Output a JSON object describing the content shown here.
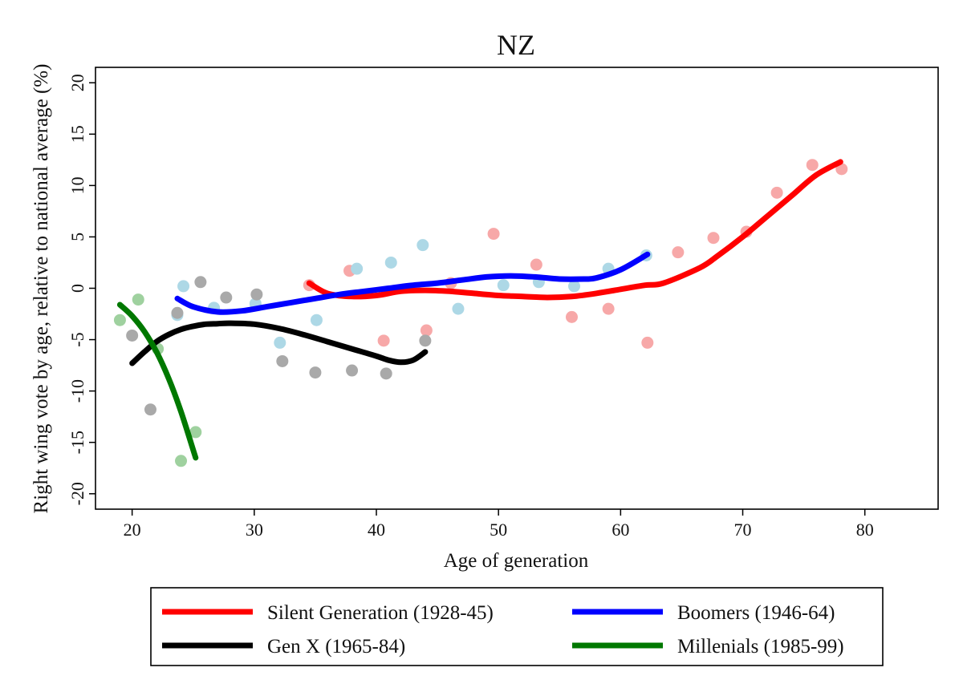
{
  "chart_data": {
    "type": "scatter",
    "title": "NZ",
    "xlabel": "Age of generation",
    "ylabel": "Right wing vote by age, relative to national average (%)",
    "xlim": [
      17,
      86
    ],
    "ylim": [
      -21.5,
      21.5
    ],
    "xticks": [
      20,
      30,
      40,
      50,
      60,
      70,
      80
    ],
    "yticks": [
      -20,
      -15,
      -10,
      -5,
      0,
      5,
      10,
      15,
      20
    ],
    "grid": false,
    "legend_position": "bottom",
    "legend_columns": 2,
    "series": [
      {
        "name": "Silent Generation (1928-45)",
        "color": "#ff0000",
        "point_color": "#f7a8a8",
        "points": [
          [
            34.5,
            0.3
          ],
          [
            37.8,
            1.7
          ],
          [
            40.6,
            -5.1
          ],
          [
            44.1,
            -4.1
          ],
          [
            46.1,
            0.5
          ],
          [
            49.6,
            5.3
          ],
          [
            53.1,
            2.3
          ],
          [
            56.0,
            -2.8
          ],
          [
            59.0,
            -2.0
          ],
          [
            62.2,
            -5.3
          ],
          [
            64.7,
            3.5
          ],
          [
            67.6,
            4.9
          ],
          [
            70.3,
            5.5
          ],
          [
            72.8,
            9.3
          ],
          [
            75.7,
            12.0
          ],
          [
            78.1,
            11.6
          ]
        ],
        "trend": [
          [
            34.5,
            0.5
          ],
          [
            36.0,
            -0.5
          ],
          [
            38.0,
            -0.8
          ],
          [
            40.0,
            -0.7
          ],
          [
            42.0,
            -0.3
          ],
          [
            44.0,
            -0.2
          ],
          [
            46.0,
            -0.3
          ],
          [
            48.0,
            -0.5
          ],
          [
            50.0,
            -0.7
          ],
          [
            52.0,
            -0.8
          ],
          [
            54.0,
            -0.9
          ],
          [
            56.0,
            -0.8
          ],
          [
            58.0,
            -0.5
          ],
          [
            60.0,
            -0.1
          ],
          [
            62.0,
            0.3
          ],
          [
            63.5,
            0.5
          ],
          [
            66.5,
            2.0
          ],
          [
            68.0,
            3.2
          ],
          [
            70.0,
            5.0
          ],
          [
            72.0,
            7.0
          ],
          [
            74.0,
            9.0
          ],
          [
            76.0,
            11.0
          ],
          [
            78.0,
            12.3
          ]
        ]
      },
      {
        "name": "Boomers (1946-64)",
        "color": "#0000ff",
        "point_color": "#add8e6",
        "points": [
          [
            23.7,
            -2.6
          ],
          [
            24.2,
            0.2
          ],
          [
            26.7,
            -1.9
          ],
          [
            30.1,
            -1.5
          ],
          [
            32.1,
            -5.3
          ],
          [
            35.1,
            -3.1
          ],
          [
            38.4,
            1.9
          ],
          [
            41.2,
            2.5
          ],
          [
            43.8,
            4.2
          ],
          [
            46.7,
            -2.0
          ],
          [
            50.4,
            0.3
          ],
          [
            53.3,
            0.6
          ],
          [
            56.2,
            0.2
          ],
          [
            59.0,
            1.9
          ],
          [
            62.1,
            3.2
          ]
        ],
        "trend": [
          [
            23.7,
            -1.0
          ],
          [
            25.0,
            -1.8
          ],
          [
            27.0,
            -2.3
          ],
          [
            29.0,
            -2.2
          ],
          [
            31.0,
            -1.8
          ],
          [
            33.0,
            -1.4
          ],
          [
            35.0,
            -1.0
          ],
          [
            37.0,
            -0.6
          ],
          [
            39.0,
            -0.3
          ],
          [
            41.0,
            0.0
          ],
          [
            43.0,
            0.3
          ],
          [
            45.0,
            0.5
          ],
          [
            47.0,
            0.8
          ],
          [
            49.0,
            1.1
          ],
          [
            51.0,
            1.2
          ],
          [
            53.0,
            1.1
          ],
          [
            55.0,
            0.9
          ],
          [
            57.0,
            0.9
          ],
          [
            58.0,
            1.0
          ],
          [
            60.0,
            1.8
          ],
          [
            62.2,
            3.3
          ]
        ]
      },
      {
        "name": "Gen X (1965-84)",
        "color": "#000000",
        "point_color": "#a9a9a9",
        "points": [
          [
            20.0,
            -4.6
          ],
          [
            21.5,
            -11.8
          ],
          [
            23.7,
            -2.4
          ],
          [
            25.6,
            0.6
          ],
          [
            27.7,
            -0.9
          ],
          [
            30.2,
            -0.6
          ],
          [
            32.3,
            -7.1
          ],
          [
            35.0,
            -8.2
          ],
          [
            38.0,
            -8.0
          ],
          [
            40.8,
            -8.3
          ],
          [
            44.0,
            -5.1
          ]
        ],
        "trend": [
          [
            20.0,
            -7.3
          ],
          [
            21.0,
            -6.2
          ],
          [
            22.0,
            -5.2
          ],
          [
            23.0,
            -4.5
          ],
          [
            24.0,
            -4.0
          ],
          [
            25.0,
            -3.7
          ],
          [
            26.0,
            -3.5
          ],
          [
            27.0,
            -3.45
          ],
          [
            28.0,
            -3.4
          ],
          [
            30.0,
            -3.5
          ],
          [
            32.0,
            -3.9
          ],
          [
            34.0,
            -4.5
          ],
          [
            36.0,
            -5.2
          ],
          [
            38.0,
            -5.9
          ],
          [
            40.0,
            -6.6
          ],
          [
            41.0,
            -7.0
          ],
          [
            42.0,
            -7.2
          ],
          [
            43.0,
            -7.0
          ],
          [
            44.0,
            -6.2
          ]
        ]
      },
      {
        "name": "Millenials (1985-99)",
        "color": "#007800",
        "point_color": "#9fd19f",
        "points": [
          [
            19.0,
            -3.1
          ],
          [
            20.5,
            -1.1
          ],
          [
            22.1,
            -5.9
          ],
          [
            24.0,
            -16.8
          ],
          [
            25.2,
            -14.0
          ]
        ],
        "trend": [
          [
            19.0,
            -1.6
          ],
          [
            20.0,
            -2.7
          ],
          [
            21.0,
            -4.2
          ],
          [
            22.0,
            -6.2
          ],
          [
            23.0,
            -8.8
          ],
          [
            24.0,
            -12.0
          ],
          [
            25.2,
            -16.5
          ]
        ]
      }
    ]
  }
}
